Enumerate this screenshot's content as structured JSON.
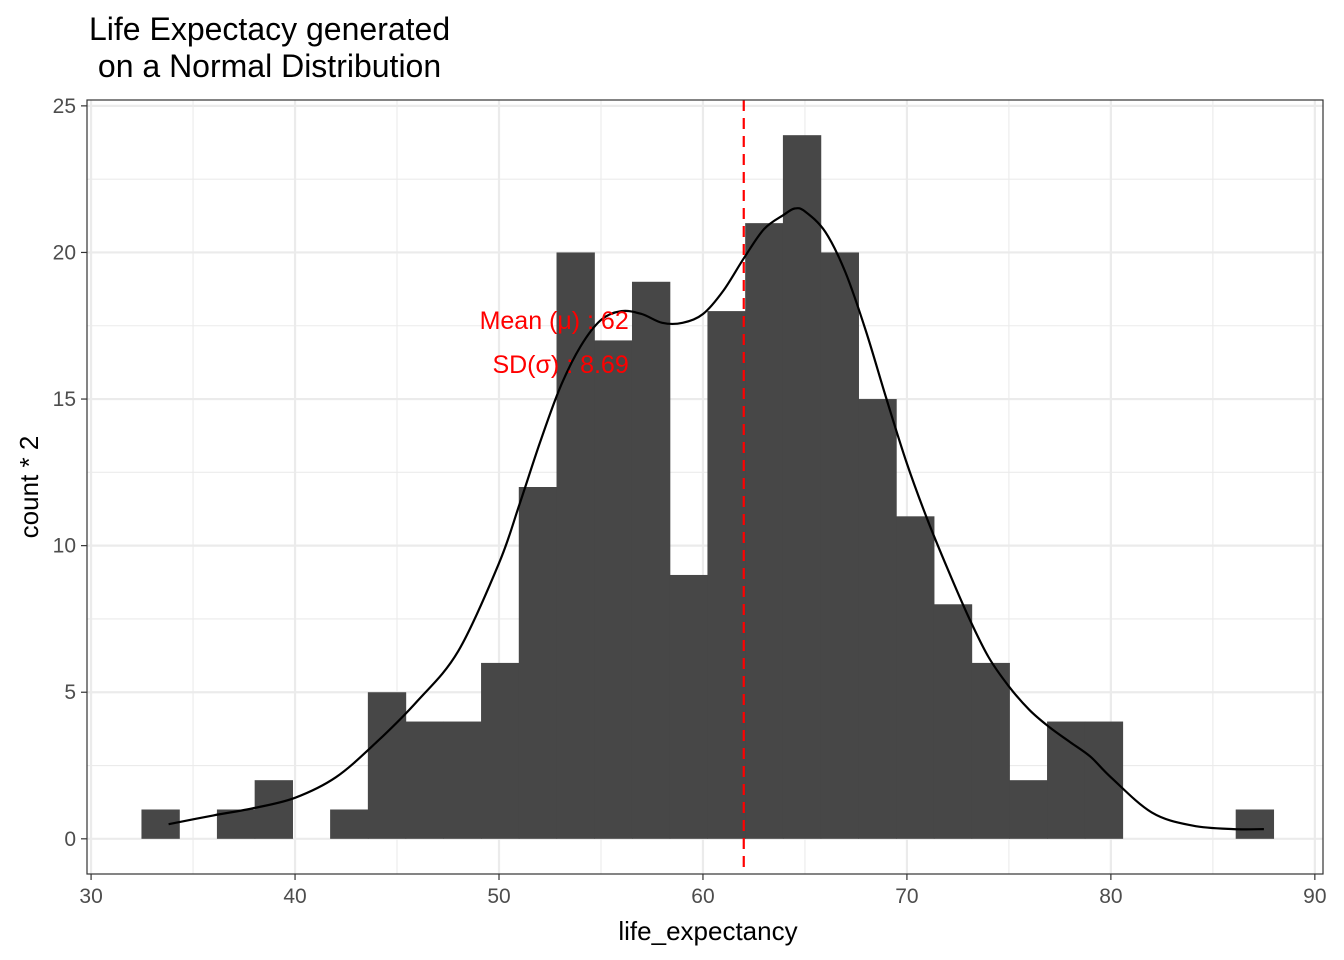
{
  "chart_data": {
    "type": "bar",
    "title_lines": [
      "Life Expectacy generated",
      " on a Normal Distribution"
    ],
    "xlabel": "life_expectancy",
    "ylabel": "count * 2",
    "xlim": [
      29.8,
      90.4
    ],
    "ylim": [
      -1.2,
      25.2
    ],
    "x_ticks": [
      30,
      40,
      50,
      60,
      70,
      80,
      90
    ],
    "x_tick_labels": [
      "30",
      "40",
      "50",
      "60",
      "70",
      "80",
      "90"
    ],
    "y_ticks": [
      0,
      5,
      10,
      15,
      20,
      25
    ],
    "y_tick_labels": [
      "0",
      "5",
      "10",
      "15",
      "20",
      "25"
    ],
    "grid": true,
    "bins": [
      {
        "x0": 32.47,
        "x1": 34.32,
        "value": 1
      },
      {
        "x0": 34.32,
        "x1": 36.17,
        "value": 0
      },
      {
        "x0": 36.17,
        "x1": 38.02,
        "value": 1
      },
      {
        "x0": 38.02,
        "x1": 39.87,
        "value": 2
      },
      {
        "x0": 39.87,
        "x1": 41.72,
        "value": 0
      },
      {
        "x0": 41.72,
        "x1": 43.57,
        "value": 1
      },
      {
        "x0": 43.57,
        "x1": 45.42,
        "value": 5
      },
      {
        "x0": 45.42,
        "x1": 47.27,
        "value": 4
      },
      {
        "x0": 47.27,
        "x1": 49.12,
        "value": 4
      },
      {
        "x0": 49.12,
        "x1": 50.97,
        "value": 6
      },
      {
        "x0": 50.97,
        "x1": 52.82,
        "value": 12
      },
      {
        "x0": 52.82,
        "x1": 54.67,
        "value": 20
      },
      {
        "x0": 54.67,
        "x1": 56.52,
        "value": 17
      },
      {
        "x0": 56.52,
        "x1": 58.37,
        "value": 19
      },
      {
        "x0": 58.37,
        "x1": 60.22,
        "value": 9
      },
      {
        "x0": 60.22,
        "x1": 62.07,
        "value": 18
      },
      {
        "x0": 62.07,
        "x1": 63.92,
        "value": 21
      },
      {
        "x0": 63.92,
        "x1": 65.77,
        "value": 24
      },
      {
        "x0": 65.77,
        "x1": 67.62,
        "value": 20
      },
      {
        "x0": 67.62,
        "x1": 69.47,
        "value": 15
      },
      {
        "x0": 69.47,
        "x1": 71.32,
        "value": 11
      },
      {
        "x0": 71.32,
        "x1": 73.17,
        "value": 8
      },
      {
        "x0": 73.17,
        "x1": 75.02,
        "value": 6
      },
      {
        "x0": 75.02,
        "x1": 76.87,
        "value": 2
      },
      {
        "x0": 76.87,
        "x1": 78.72,
        "value": 4
      },
      {
        "x0": 78.72,
        "x1": 80.57,
        "value": 4
      },
      {
        "x0": 80.57,
        "x1": 82.42,
        "value": 0
      },
      {
        "x0": 82.42,
        "x1": 84.27,
        "value": 0
      },
      {
        "x0": 84.27,
        "x1": 86.12,
        "value": 0
      },
      {
        "x0": 86.12,
        "x1": 87.97,
        "value": 1
      }
    ],
    "density_curve": {
      "x": [
        33.8,
        36,
        38,
        40,
        42,
        44,
        46,
        48,
        50,
        51,
        52,
        53,
        54,
        55,
        56,
        57,
        58,
        59,
        60,
        61,
        62,
        63,
        64,
        64.5,
        65,
        66,
        67,
        68,
        69,
        70,
        71,
        72,
        73,
        74,
        75,
        76,
        77,
        78,
        79,
        80,
        82,
        84,
        86,
        87.5
      ],
      "y": [
        0.5,
        0.8,
        1.05,
        1.4,
        2.1,
        3.3,
        4.7,
        6.4,
        9.4,
        11.4,
        13.5,
        15.4,
        16.8,
        17.7,
        18.0,
        17.9,
        17.6,
        17.6,
        17.9,
        18.7,
        19.8,
        20.8,
        21.3,
        21.5,
        21.4,
        20.7,
        19.3,
        17.3,
        15.0,
        12.8,
        10.9,
        9.2,
        7.6,
        6.2,
        5.2,
        4.4,
        3.8,
        3.3,
        2.8,
        2.1,
        0.9,
        0.45,
        0.33,
        0.33
      ],
      "color": "#000000"
    },
    "mean_line": {
      "x": 62,
      "color": "#ff0000",
      "style": "dashed"
    },
    "annotations": [
      {
        "text": "Mean (μ) :  62",
        "x": 62,
        "y": 17.7
      },
      {
        "text": "SD(σ) :  8.69",
        "x": 62,
        "y": 16.2
      }
    ],
    "colors": {
      "bar": "#474747",
      "annotation": "#ff0000",
      "grid": "#ebebeb",
      "panel_border": "#333333"
    }
  }
}
